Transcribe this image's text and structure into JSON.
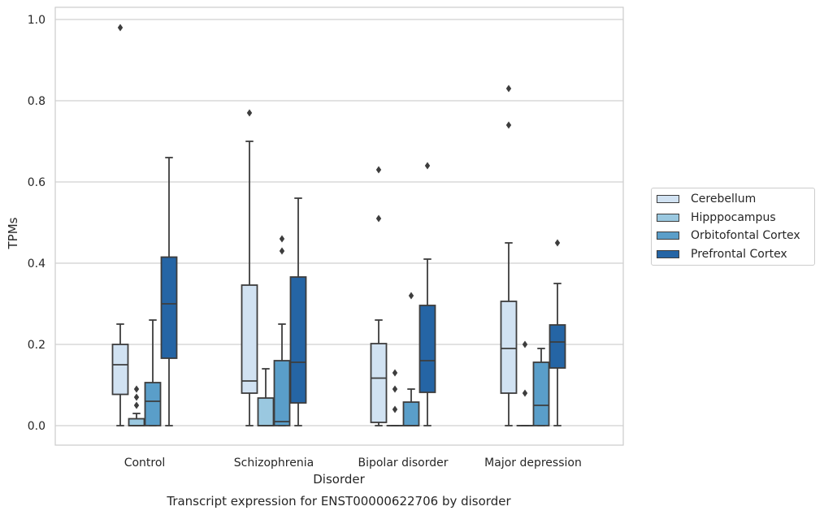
{
  "chart_data": {
    "type": "box",
    "xlabel": "Disorder",
    "ylabel": "TPMs",
    "caption": "Transcript expression for ENST00000622706 by disorder",
    "ylim": [
      -0.045,
      1.03
    ],
    "yticks": [
      "0.0",
      "0.2",
      "0.4",
      "0.6",
      "0.8",
      "1.0"
    ],
    "grid": true,
    "legend_position": "right",
    "categories": [
      "Control",
      "Schizophrenia",
      "Bipolar disorder",
      "Major depression"
    ],
    "series": [
      {
        "name": "Cerebellum",
        "color": "#d1e2f2",
        "boxes": [
          {
            "whislo": 0.0,
            "q1": 0.077,
            "med": 0.15,
            "q3": 0.2,
            "whishi": 0.25,
            "fliers": [
              0.98
            ]
          },
          {
            "whislo": 0.0,
            "q1": 0.08,
            "med": 0.11,
            "q3": 0.346,
            "whishi": 0.7,
            "fliers": [
              0.77
            ]
          },
          {
            "whislo": 0.0,
            "q1": 0.008,
            "med": 0.117,
            "q3": 0.202,
            "whishi": 0.26,
            "fliers": [
              0.51,
              0.63
            ]
          },
          {
            "whislo": 0.0,
            "q1": 0.08,
            "med": 0.19,
            "q3": 0.306,
            "whishi": 0.45,
            "fliers": [
              0.74,
              0.83
            ]
          }
        ]
      },
      {
        "name": "Hipppocampus",
        "color": "#9ac8e0",
        "boxes": [
          {
            "whislo": 0.0,
            "q1": 0.0,
            "med": 0.0,
            "q3": 0.017,
            "whishi": 0.03,
            "fliers": [
              0.05,
              0.07,
              0.09
            ]
          },
          {
            "whislo": 0.0,
            "q1": 0.0,
            "med": 0.0,
            "q3": 0.068,
            "whishi": 0.14,
            "fliers": []
          },
          {
            "whislo": 0.0,
            "q1": 0.0,
            "med": 0.0,
            "q3": 0.0,
            "whishi": 0.0,
            "fliers": [
              0.04,
              0.09,
              0.13
            ]
          },
          {
            "whislo": 0.0,
            "q1": 0.0,
            "med": 0.0,
            "q3": 0.0,
            "whishi": 0.0,
            "fliers": [
              0.08,
              0.2
            ]
          }
        ]
      },
      {
        "name": "Orbitofontal Cortex",
        "color": "#5a9ec9",
        "boxes": [
          {
            "whislo": 0.0,
            "q1": 0.0,
            "med": 0.06,
            "q3": 0.106,
            "whishi": 0.26,
            "fliers": []
          },
          {
            "whislo": 0.0,
            "q1": 0.0,
            "med": 0.01,
            "q3": 0.16,
            "whishi": 0.25,
            "fliers": [
              0.43,
              0.46
            ]
          },
          {
            "whislo": 0.0,
            "q1": 0.0,
            "med": 0.0,
            "q3": 0.058,
            "whishi": 0.09,
            "fliers": [
              0.32
            ]
          },
          {
            "whislo": 0.0,
            "q1": 0.0,
            "med": 0.05,
            "q3": 0.156,
            "whishi": 0.19,
            "fliers": []
          }
        ]
      },
      {
        "name": "Prefrontal Cortex",
        "color": "#2565a5",
        "boxes": [
          {
            "whislo": 0.0,
            "q1": 0.166,
            "med": 0.3,
            "q3": 0.415,
            "whishi": 0.66,
            "fliers": []
          },
          {
            "whislo": 0.0,
            "q1": 0.056,
            "med": 0.156,
            "q3": 0.366,
            "whishi": 0.56,
            "fliers": []
          },
          {
            "whislo": 0.0,
            "q1": 0.082,
            "med": 0.16,
            "q3": 0.296,
            "whishi": 0.41,
            "fliers": [
              0.64
            ]
          },
          {
            "whislo": 0.0,
            "q1": 0.142,
            "med": 0.206,
            "q3": 0.248,
            "whishi": 0.35,
            "fliers": [
              0.45
            ]
          }
        ]
      }
    ]
  }
}
